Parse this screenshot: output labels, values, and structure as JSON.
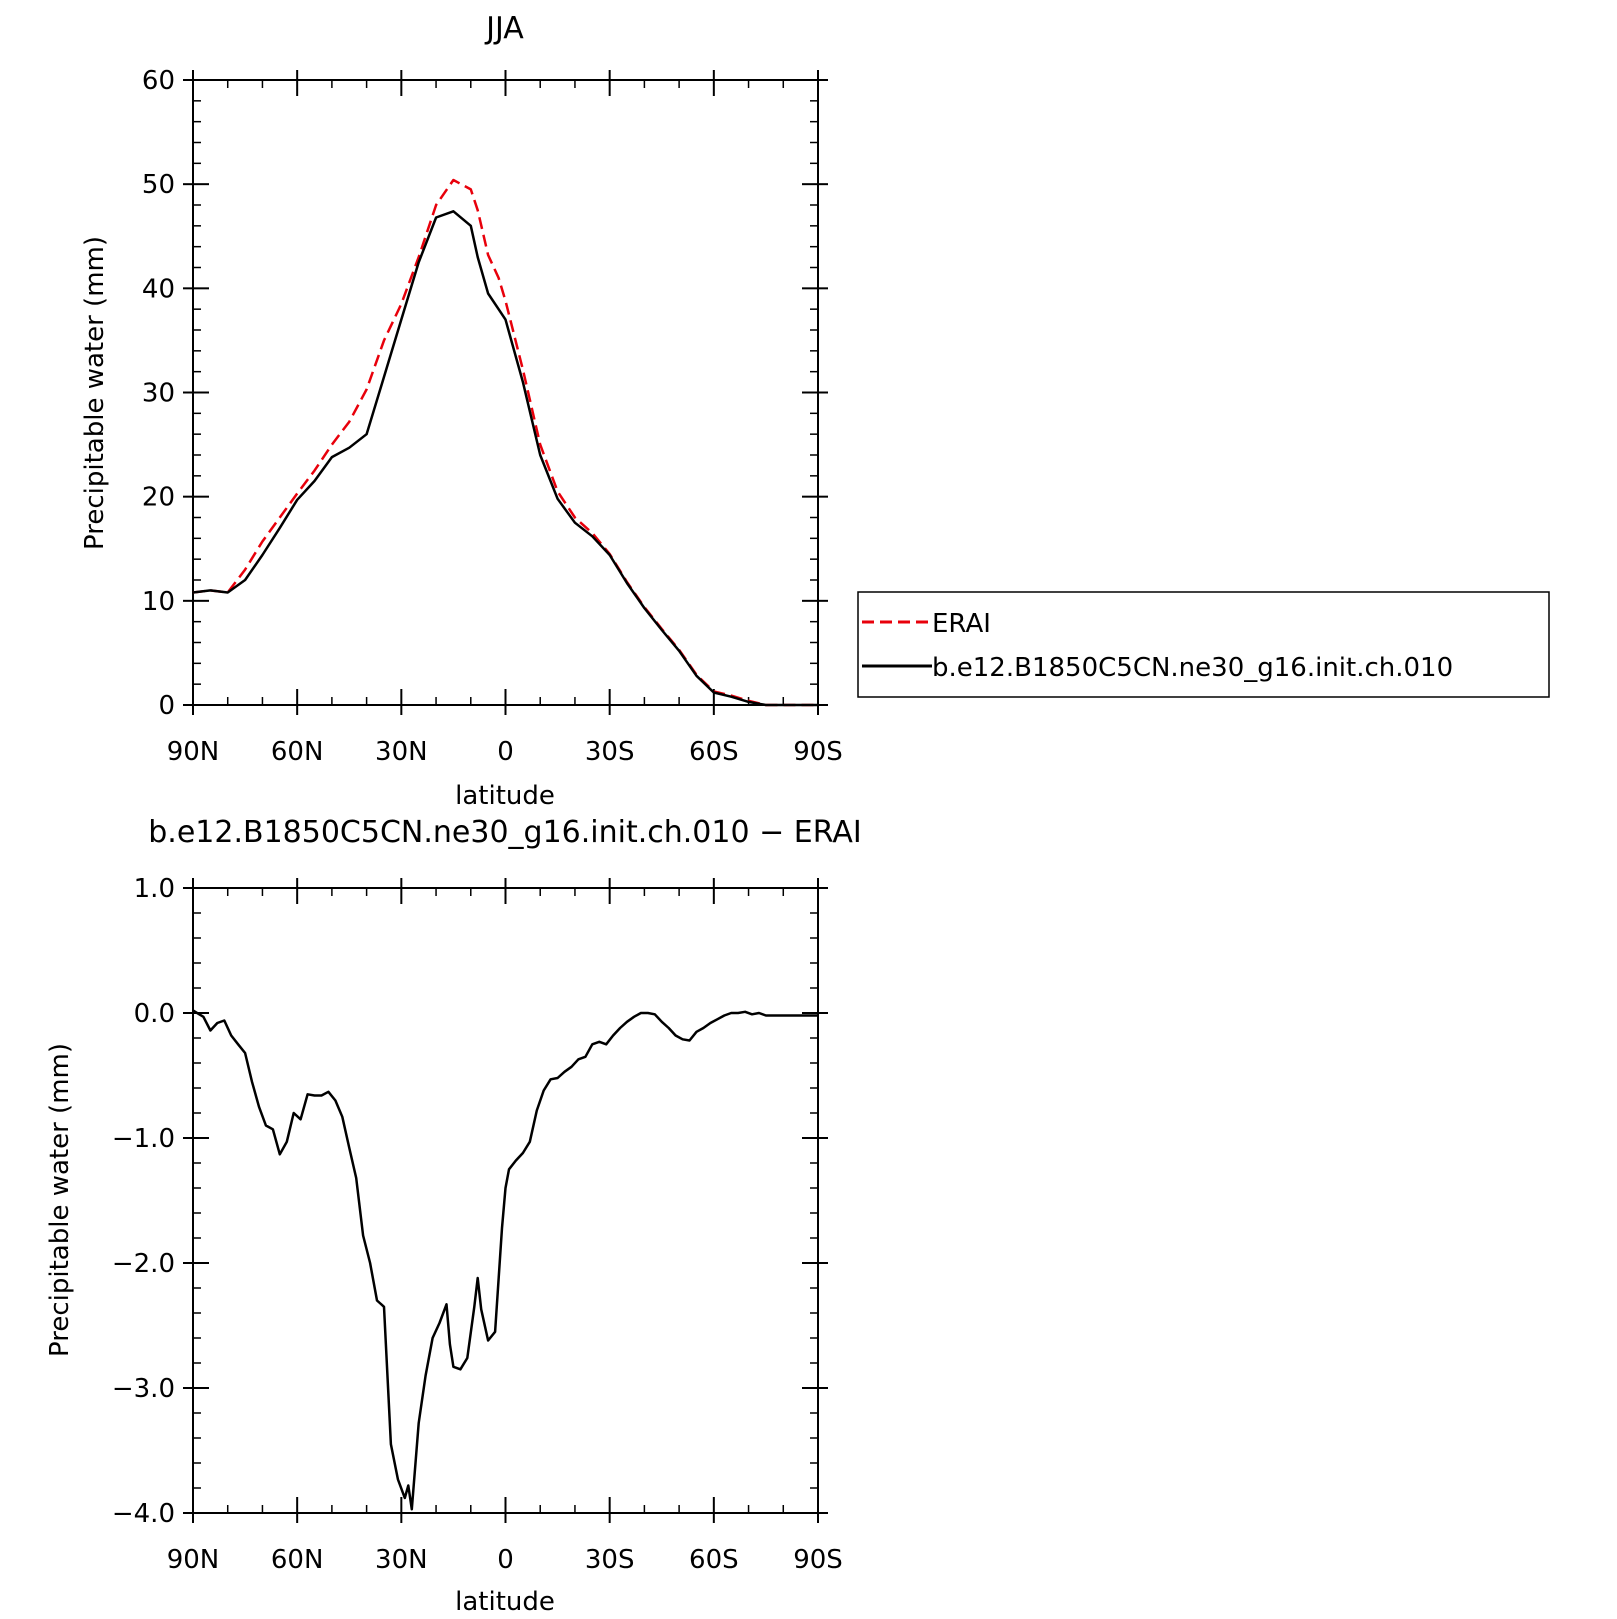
{
  "chart_data": [
    {
      "type": "line",
      "title": "JJA",
      "xlabel": "latitude",
      "ylabel": "Precipitable water (mm)",
      "ylim": [
        0,
        60
      ],
      "yticks": [
        0,
        10,
        20,
        30,
        40,
        50,
        60
      ],
      "xlim": [
        90,
        -90
      ],
      "xticks": [
        {
          "value": 90,
          "label": "90N"
        },
        {
          "value": 60,
          "label": "60N"
        },
        {
          "value": 30,
          "label": "30N"
        },
        {
          "value": 0,
          "label": "0"
        },
        {
          "value": -30,
          "label": "30S"
        },
        {
          "value": -60,
          "label": "60S"
        },
        {
          "value": -90,
          "label": "90S"
        }
      ],
      "legend_position": "right",
      "x": [
        90,
        85,
        80,
        75,
        70,
        65,
        60,
        55,
        50,
        45,
        40,
        35,
        30,
        25,
        20,
        15,
        10,
        8,
        5,
        2,
        0,
        -5,
        -10,
        -15,
        -20,
        -25,
        -30,
        -35,
        -40,
        -45,
        -50,
        -55,
        -60,
        -65,
        -70,
        -75,
        -80,
        -85,
        -90
      ],
      "series": [
        {
          "name": "ERAI",
          "color": "#e8000b",
          "dash": "dashed",
          "values": [
            10.8,
            11.0,
            10.8,
            13.0,
            15.7,
            18.0,
            20.3,
            22.5,
            25.0,
            27.2,
            30.3,
            35.0,
            38.5,
            43.0,
            48.0,
            50.4,
            49.5,
            47.5,
            43.2,
            41.0,
            38.8,
            32.2,
            25.0,
            20.5,
            18.0,
            16.5,
            14.5,
            11.8,
            9.4,
            7.3,
            5.3,
            2.9,
            1.3,
            0.9,
            0.4,
            0.0,
            0.0,
            0.0,
            0.0
          ]
        },
        {
          "name": "b.e12.B1850C5CN.ne30_g16.init.ch.010",
          "color": "#000000",
          "dash": "solid",
          "values": [
            10.8,
            11.0,
            10.8,
            12.0,
            14.4,
            17.0,
            19.7,
            21.5,
            23.8,
            24.7,
            26.0,
            31.5,
            37.0,
            42.5,
            46.8,
            47.4,
            46.0,
            43.0,
            39.5,
            38.0,
            37.0,
            31.0,
            24.0,
            19.8,
            17.5,
            16.2,
            14.4,
            11.7,
            9.3,
            7.2,
            5.2,
            2.8,
            1.2,
            0.8,
            0.3,
            0.0,
            0.0,
            0.0,
            0.0
          ]
        }
      ]
    },
    {
      "type": "line",
      "title": "b.e12.B1850C5CN.ne30_g16.init.ch.010 − ERAI",
      "xlabel": "latitude",
      "ylabel": "Precipitable water (mm)",
      "ylim": [
        -4.0,
        1.0
      ],
      "yticks": [
        {
          "value": 1.0,
          "label": "1.0"
        },
        {
          "value": 0.0,
          "label": "0.0"
        },
        {
          "value": -1.0,
          "label": "−1.0"
        },
        {
          "value": -2.0,
          "label": "−2.0"
        },
        {
          "value": -3.0,
          "label": "−3.0"
        },
        {
          "value": -4.0,
          "label": "−4.0"
        }
      ],
      "xlim": [
        90,
        -90
      ],
      "xticks": [
        {
          "value": 90,
          "label": "90N"
        },
        {
          "value": 60,
          "label": "60N"
        },
        {
          "value": 30,
          "label": "30N"
        },
        {
          "value": 0,
          "label": "0"
        },
        {
          "value": -30,
          "label": "30S"
        },
        {
          "value": -60,
          "label": "60S"
        },
        {
          "value": -90,
          "label": "90S"
        }
      ],
      "series": [
        {
          "color": "#000000",
          "x": [
            90,
            87,
            85,
            83,
            81,
            79,
            77,
            75,
            73,
            71,
            69,
            67,
            65,
            63,
            61,
            59,
            57,
            55,
            53,
            51,
            49,
            47,
            45,
            43,
            41,
            39,
            37,
            35,
            33,
            31,
            29,
            28,
            27,
            25,
            23,
            21,
            19,
            17,
            16,
            15,
            13,
            11,
            9,
            8,
            7,
            5,
            3,
            1,
            0,
            -1,
            -3,
            -5,
            -7,
            -9,
            -11,
            -13,
            -15,
            -17,
            -19,
            -21,
            -23,
            -25,
            -27,
            -29,
            -31,
            -33,
            -35,
            -37,
            -39,
            -41,
            -43,
            -45,
            -47,
            -49,
            -51,
            -53,
            -55,
            -57,
            -59,
            -61,
            -63,
            -65,
            -67,
            -69,
            -71,
            -73,
            -75,
            -77,
            -79,
            -81,
            -83,
            -85,
            -87,
            -90
          ],
          "values": [
            0.02,
            -0.03,
            -0.14,
            -0.08,
            -0.06,
            -0.18,
            -0.25,
            -0.32,
            -0.55,
            -0.75,
            -0.9,
            -0.93,
            -1.13,
            -1.03,
            -0.8,
            -0.85,
            -0.65,
            -0.66,
            -0.66,
            -0.63,
            -0.7,
            -0.83,
            -1.08,
            -1.32,
            -1.78,
            -2.0,
            -2.3,
            -2.35,
            -3.45,
            -3.73,
            -3.88,
            -3.78,
            -3.97,
            -3.28,
            -2.9,
            -2.6,
            -2.48,
            -2.33,
            -2.65,
            -2.83,
            -2.85,
            -2.76,
            -2.35,
            -2.12,
            -2.37,
            -2.62,
            -2.55,
            -1.72,
            -1.4,
            -1.25,
            -1.18,
            -1.12,
            -1.03,
            -0.78,
            -0.62,
            -0.53,
            -0.52,
            -0.47,
            -0.43,
            -0.37,
            -0.35,
            -0.25,
            -0.23,
            -0.25,
            -0.18,
            -0.12,
            -0.07,
            -0.03,
            0.0,
            0.0,
            -0.01,
            -0.07,
            -0.12,
            -0.18,
            -0.21,
            -0.22,
            -0.15,
            -0.12,
            -0.08,
            -0.05,
            -0.02,
            0.0,
            0.0,
            0.01,
            -0.01,
            0.0,
            -0.02,
            -0.02,
            -0.02,
            -0.02,
            -0.02,
            -0.02,
            -0.02,
            -0.02
          ]
        }
      ]
    }
  ]
}
